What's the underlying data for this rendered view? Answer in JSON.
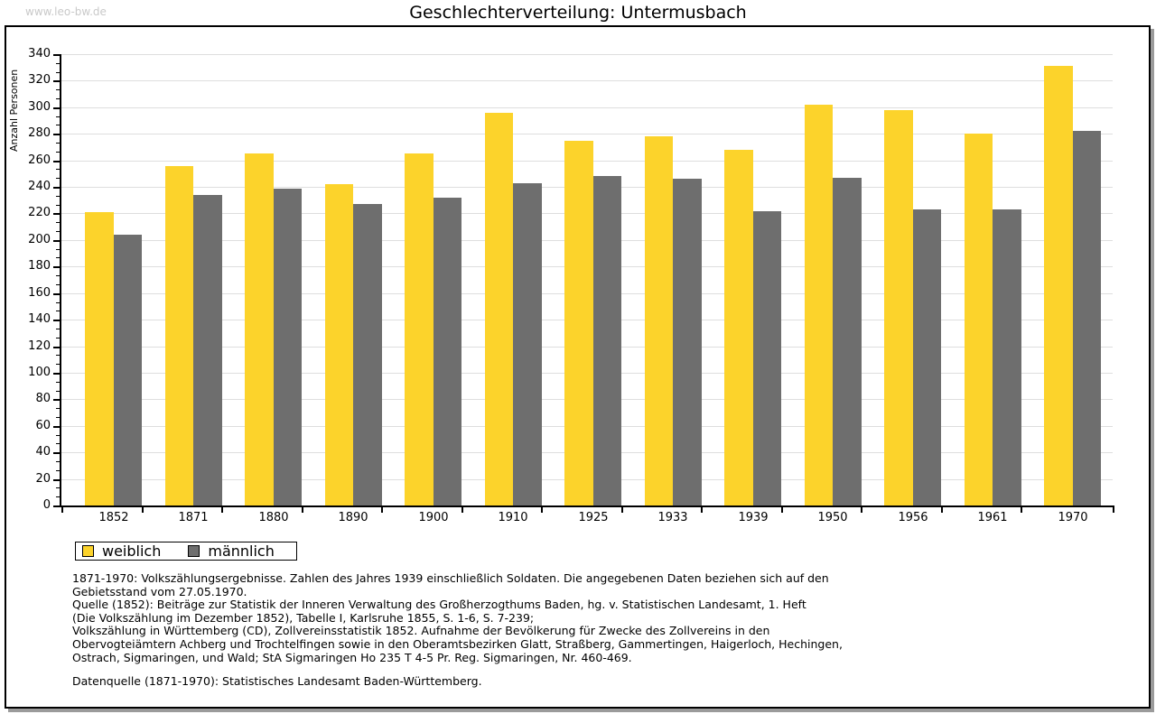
{
  "watermark": "www.leo-bw.de",
  "title": "Geschlechterverteilung: Untermusbach",
  "chart_data": {
    "type": "bar",
    "title": "Geschlechterverteilung: Untermusbach",
    "xlabel": "",
    "ylabel": "Anzahl Personen",
    "ylim": [
      0,
      340
    ],
    "ytick_step": 20,
    "grid": "horizontal",
    "legend_position": "bottom-left",
    "categories": [
      "1852",
      "1871",
      "1880",
      "1890",
      "1900",
      "1910",
      "1925",
      "1933",
      "1939",
      "1950",
      "1956",
      "1961",
      "1970"
    ],
    "series": [
      {
        "name": "weiblich",
        "color": "#fcd32b",
        "values": [
          221,
          256,
          265,
          242,
          265,
          296,
          275,
          278,
          268,
          302,
          298,
          280,
          331
        ]
      },
      {
        "name": "männlich",
        "color": "#6e6e6e",
        "values": [
          204,
          234,
          239,
          227,
          232,
          243,
          248,
          246,
          222,
          247,
          223,
          223,
          282
        ]
      }
    ]
  },
  "legend": {
    "items": [
      {
        "label": "weiblich",
        "color": "#fcd32b"
      },
      {
        "label": "männlich",
        "color": "#6e6e6e"
      }
    ]
  },
  "notes": [
    "1871-1970: Volkszählungsergebnisse. Zahlen des Jahres 1939 einschließlich Soldaten. Die angegebenen Daten beziehen sich auf den",
    "Gebietsstand vom 27.05.1970.",
    "Quelle (1852): Beiträge zur Statistik der Inneren Verwaltung des Großherzogthums Baden, hg. v. Statistischen Landesamt, 1. Heft",
    "(Die Volkszählung im Dezember 1852), Tabelle I, Karlsruhe 1855, S. 1-6, S. 7-239;",
    "Volkszählung in Württemberg (CD), Zollvereinsstatistik 1852. Aufnahme der Bevölkerung für Zwecke des Zollvereins in den",
    "Obervogteiämtern Achberg und Trochtelfingen sowie in den Oberamtsbezirken Glatt, Straßberg, Gammertingen, Haigerloch, Hechingen,",
    "Ostrach, Sigmaringen, und Wald; StA Sigmaringen Ho 235 T 4-5 Pr. Reg. Sigmaringen, Nr. 460-469."
  ],
  "source_line": "Datenquelle (1871-1970): Statistisches Landesamt Baden-Württemberg."
}
